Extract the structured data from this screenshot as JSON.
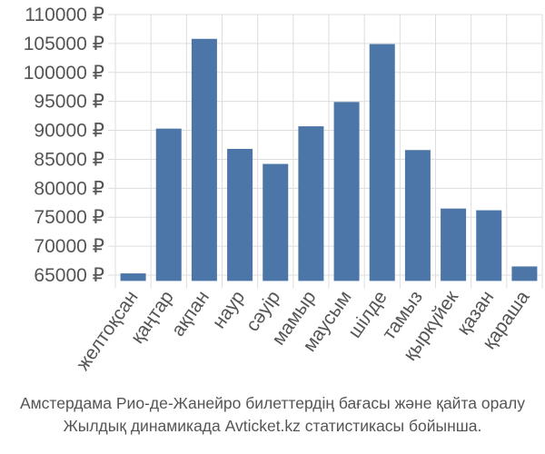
{
  "chart_data": {
    "type": "bar",
    "categories": [
      "желтоқсан",
      "қаңтар",
      "ақпан",
      "наур",
      "сәуір",
      "мамыр",
      "маусым",
      "шілде",
      "тамыз",
      "қыркүйек",
      "қазан",
      "қараша"
    ],
    "values": [
      65300,
      90300,
      105800,
      86800,
      84200,
      90700,
      94900,
      104900,
      86600,
      76500,
      76200,
      66500
    ],
    "y_ticks": [
      "65000 ₽",
      "70000 ₽",
      "75000 ₽",
      "80000 ₽",
      "85000 ₽",
      "90000 ₽",
      "95000 ₽",
      "100000 ₽",
      "105000 ₽",
      "110000 ₽"
    ],
    "ylim": [
      64000,
      110000
    ],
    "grid": true,
    "bar_color": "#4d76a8",
    "grid_color": "#dddddd"
  },
  "caption": {
    "line1": "Амстердама Рио-де-Жанейро билеттердің бағасы және қайта оралу",
    "line2": "Жылдық динамикада Avticket.kz статистикасы бойынша."
  }
}
